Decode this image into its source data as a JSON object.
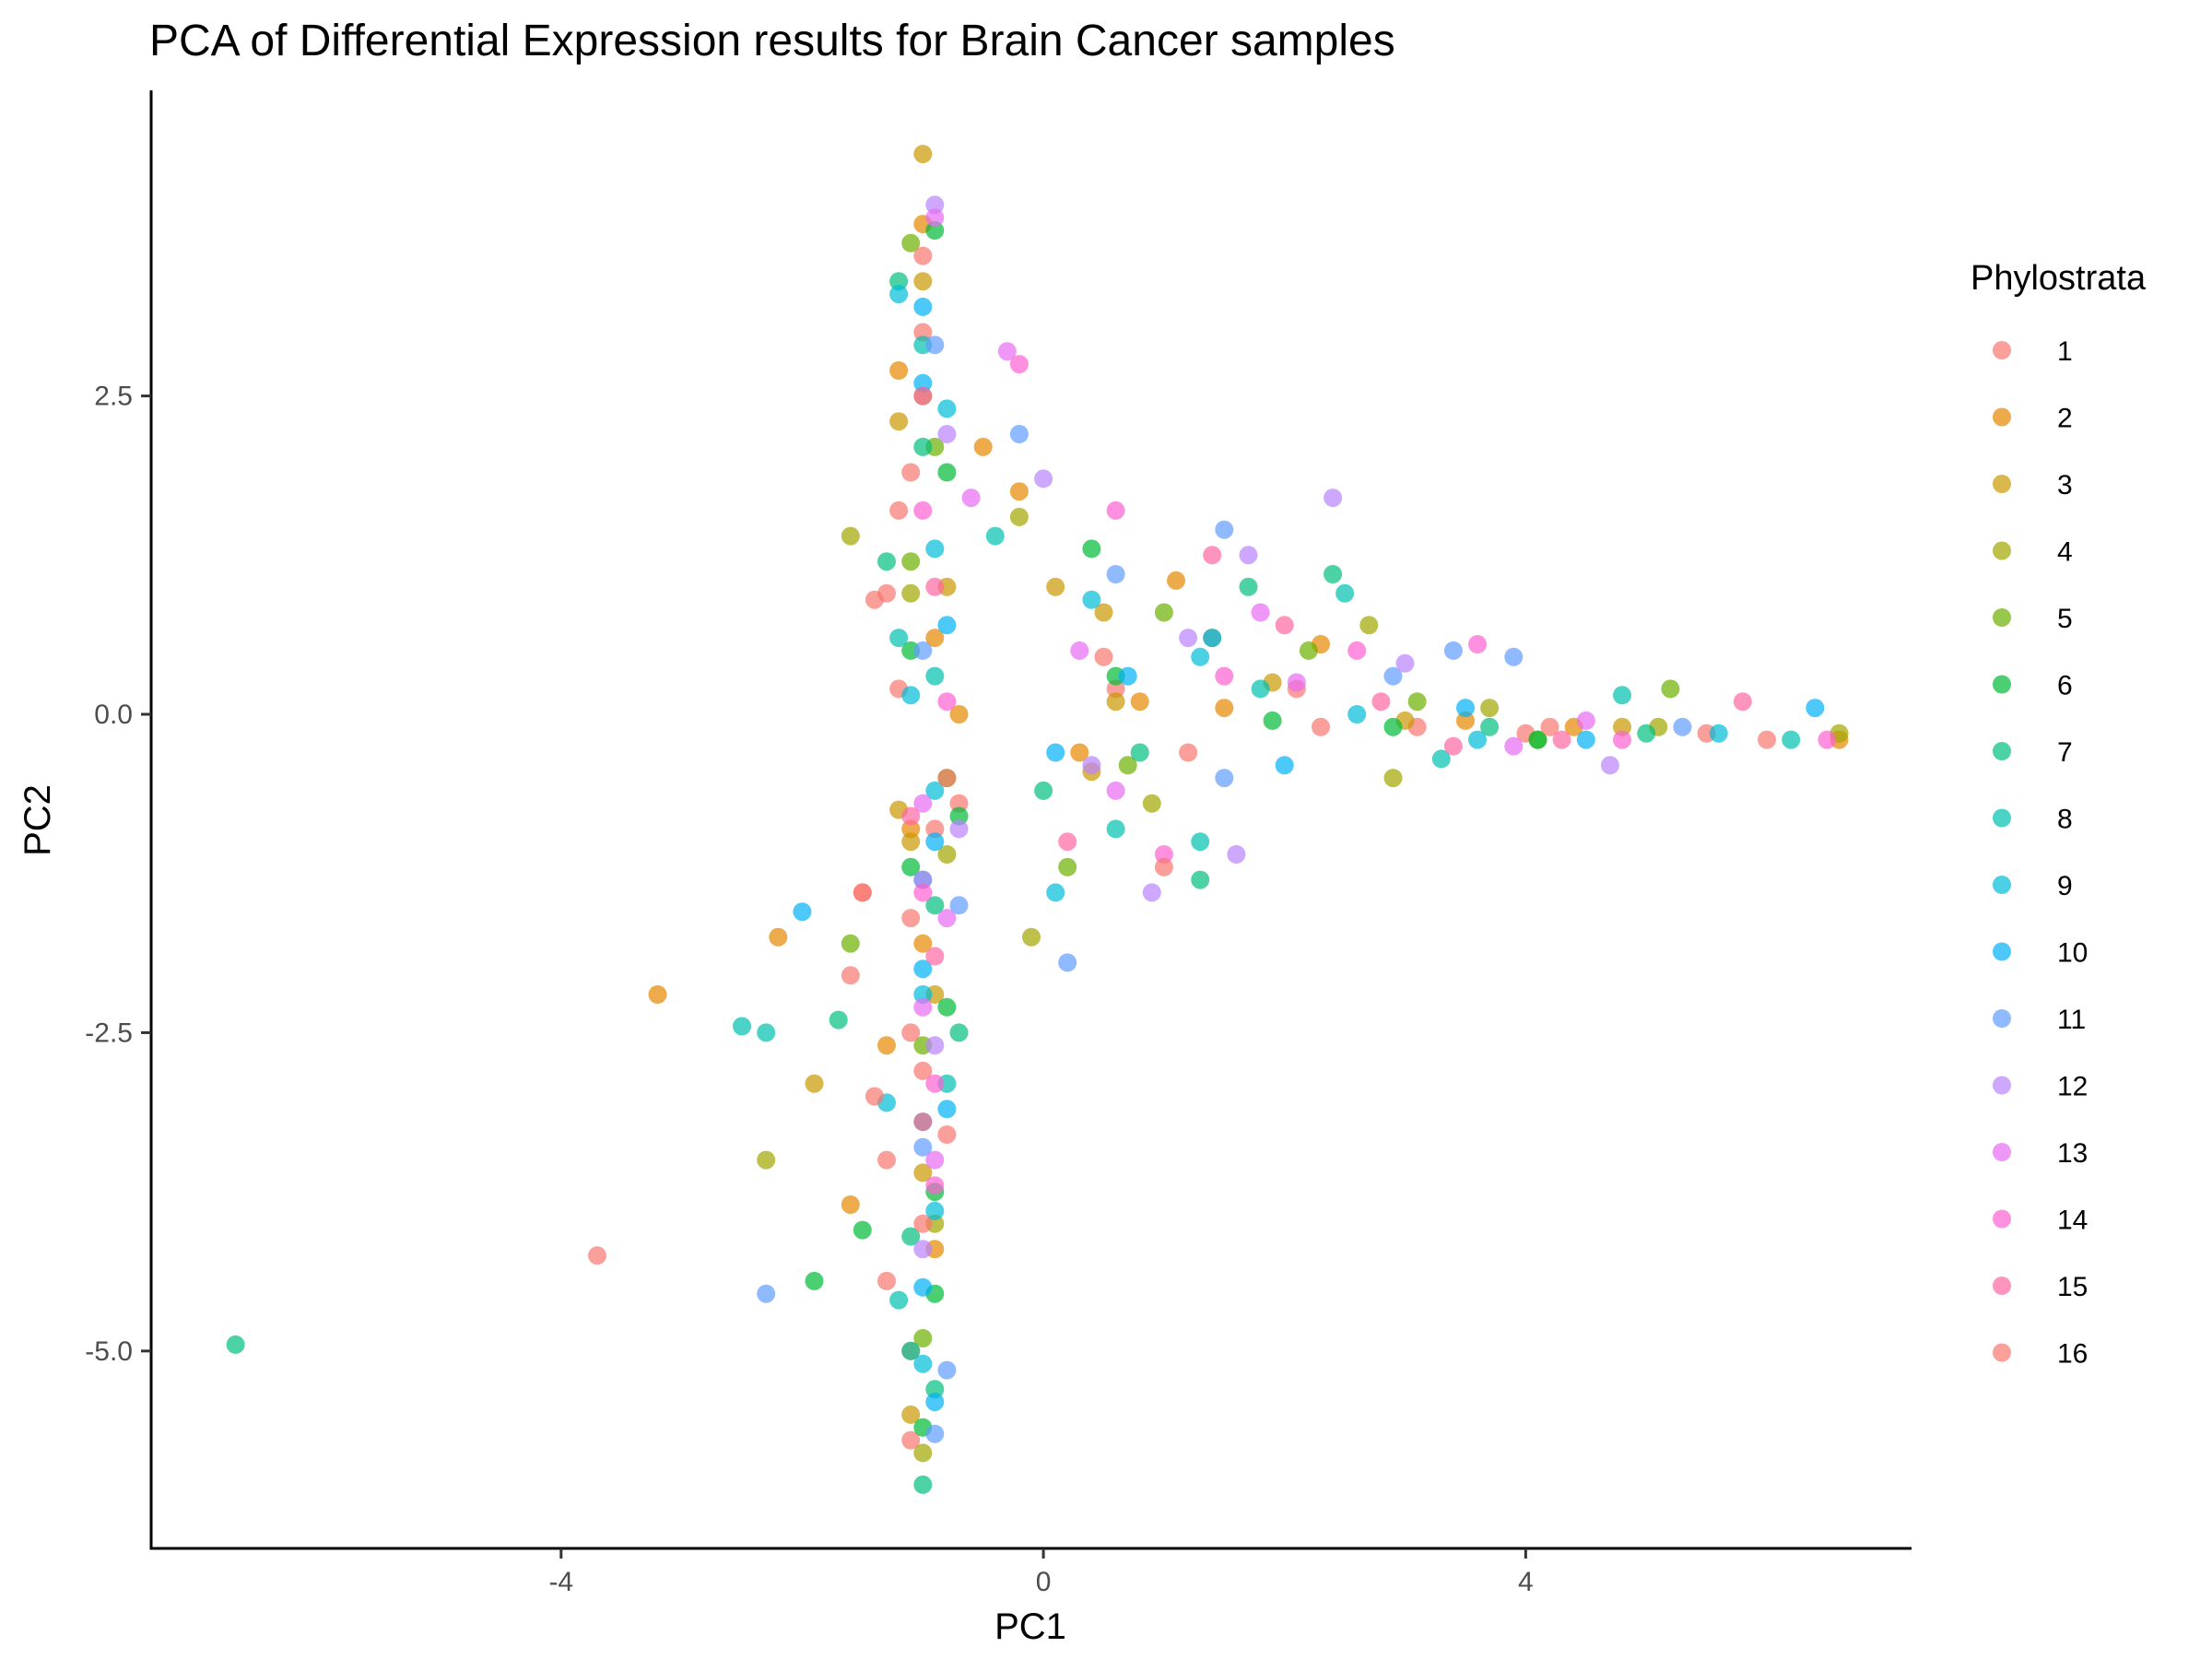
{
  "chart_data": {
    "type": "scatter",
    "title": "PCA of Differential Expression results for Brain Cancer samples",
    "xlabel": "PC1",
    "ylabel": "PC2",
    "xlim": [
      -7.4,
      7.2
    ],
    "ylim": [
      -6.55,
      4.9
    ],
    "x_ticks": [
      -4,
      0,
      4
    ],
    "x_tick_labels": [
      "-4",
      "0",
      "4"
    ],
    "y_ticks": [
      -5.0,
      -2.5,
      0.0,
      2.5
    ],
    "y_tick_labels": [
      "-5.0",
      "-2.5",
      "0.0",
      "2.5"
    ],
    "grid": false,
    "legend": {
      "title": "Phylostrata",
      "placement": "right",
      "entries": [
        "1",
        "2",
        "3",
        "4",
        "5",
        "6",
        "7",
        "8",
        "9",
        "10",
        "11",
        "12",
        "13",
        "14",
        "15",
        "16"
      ]
    },
    "colors": [
      "#F8766D",
      "#E58700",
      "#C99800",
      "#A3A500",
      "#6BB100",
      "#00BA38",
      "#00BF7D",
      "#00C0AF",
      "#00BCD8",
      "#00B0F6",
      "#619CFF",
      "#B983FF",
      "#E76BF3",
      "#FD61D1",
      "#FF67A4",
      "#F8766D"
    ],
    "point_opacity": 0.7,
    "series": [
      {
        "name": "1",
        "points": [
          [
            -3.7,
            -4.25
          ],
          [
            -1.2,
            0.2
          ],
          [
            -1.4,
            0.9
          ],
          [
            -1.6,
            -2.05
          ],
          [
            -1.3,
            -3.5
          ],
          [
            -1.3,
            -4.45
          ],
          [
            -1.1,
            -5.7
          ],
          [
            -1.5,
            -1.4
          ],
          [
            -1.0,
            -2.8
          ],
          [
            -0.9,
            -0.9
          ],
          [
            -1.2,
            1.6
          ],
          [
            -1.0,
            3.0
          ],
          [
            -0.7,
            -0.7
          ],
          [
            0.6,
            0.2
          ],
          [
            1.2,
            -0.3
          ],
          [
            2.1,
            0.2
          ],
          [
            3.1,
            -0.1
          ],
          [
            4.0,
            -0.15
          ],
          [
            5.5,
            -0.15
          ],
          [
            6.0,
            -0.2
          ],
          [
            -0.8,
            -3.3
          ],
          [
            -1.1,
            -1.6
          ]
        ]
      },
      {
        "name": "2",
        "points": [
          [
            -3.2,
            -2.2
          ],
          [
            -2.2,
            -1.75
          ],
          [
            -1.6,
            -3.85
          ],
          [
            -0.5,
            2.1
          ],
          [
            -0.2,
            1.75
          ],
          [
            -0.7,
            0.0
          ],
          [
            1.5,
            0.05
          ],
          [
            1.1,
            1.05
          ],
          [
            -1.2,
            2.7
          ],
          [
            -1.0,
            3.85
          ],
          [
            -1.1,
            -0.9
          ],
          [
            -1.1,
            -5.0
          ],
          [
            -1.0,
            -1.8
          ],
          [
            -0.9,
            0.6
          ],
          [
            0.3,
            -0.3
          ],
          [
            0.8,
            0.1
          ],
          [
            2.3,
            0.55
          ],
          [
            3.5,
            -0.05
          ],
          [
            4.4,
            -0.1
          ],
          [
            6.6,
            -0.2
          ],
          [
            -1.3,
            -2.6
          ],
          [
            -0.9,
            -4.2
          ]
        ]
      },
      {
        "name": "3",
        "points": [
          [
            -1.0,
            4.4
          ],
          [
            -1.9,
            -2.9
          ],
          [
            -1.1,
            -5.5
          ],
          [
            -1.0,
            3.4
          ],
          [
            -1.2,
            2.3
          ],
          [
            0.1,
            1.0
          ],
          [
            -0.8,
            1.0
          ],
          [
            0.5,
            0.8
          ],
          [
            0.6,
            0.1
          ],
          [
            1.9,
            0.25
          ],
          [
            3.0,
            -0.05
          ],
          [
            -1.1,
            -1.0
          ],
          [
            -1.0,
            -3.6
          ],
          [
            0.4,
            -0.45
          ],
          [
            4.8,
            -0.1
          ],
          [
            -0.9,
            -2.2
          ],
          [
            -1.2,
            -0.75
          ]
        ]
      },
      {
        "name": "4",
        "points": [
          [
            -2.3,
            -3.5
          ],
          [
            -1.6,
            1.4
          ],
          [
            -0.2,
            1.55
          ],
          [
            -0.1,
            -1.75
          ],
          [
            2.9,
            -0.5
          ],
          [
            2.7,
            0.7
          ],
          [
            -1.0,
            2.5
          ],
          [
            -0.8,
            -1.1
          ],
          [
            -0.9,
            -4.0
          ],
          [
            0.9,
            -0.7
          ],
          [
            1.4,
            0.6
          ],
          [
            5.1,
            -0.1
          ],
          [
            6.6,
            -0.15
          ],
          [
            -1.0,
            -5.8
          ],
          [
            -1.1,
            0.95
          ],
          [
            3.7,
            0.05
          ]
        ]
      },
      {
        "name": "5",
        "points": [
          [
            -1.6,
            -1.8
          ],
          [
            -1.1,
            1.2
          ],
          [
            -0.9,
            2.1
          ],
          [
            -1.0,
            -2.6
          ],
          [
            -1.0,
            -4.9
          ],
          [
            0.2,
            -1.2
          ],
          [
            1.0,
            0.8
          ],
          [
            2.2,
            0.5
          ],
          [
            3.1,
            0.1
          ],
          [
            5.2,
            0.2
          ],
          [
            4.1,
            -0.2
          ],
          [
            -0.8,
            -0.5
          ],
          [
            -1.1,
            3.7
          ],
          [
            0.7,
            -0.4
          ]
        ]
      },
      {
        "name": "6",
        "points": [
          [
            -1.9,
            -4.45
          ],
          [
            -1.5,
            -4.05
          ],
          [
            -0.9,
            -4.55
          ],
          [
            -0.9,
            -3.75
          ],
          [
            -0.8,
            1.9
          ],
          [
            0.4,
            1.3
          ],
          [
            -0.7,
            -0.8
          ],
          [
            -1.1,
            -1.2
          ],
          [
            -0.9,
            3.8
          ],
          [
            1.9,
            -0.05
          ],
          [
            4.1,
            -0.2
          ],
          [
            -1.0,
            -5.6
          ],
          [
            0.6,
            0.3
          ],
          [
            2.9,
            -0.1
          ],
          [
            -0.8,
            -2.3
          ],
          [
            -1.1,
            0.5
          ]
        ]
      },
      {
        "name": "7",
        "points": [
          [
            -6.7,
            -4.95
          ],
          [
            -1.7,
            -2.4
          ],
          [
            -1.0,
            -3.2
          ],
          [
            -1.0,
            -6.05
          ],
          [
            -0.7,
            -2.5
          ],
          [
            1.3,
            -1.3
          ],
          [
            1.7,
            1.0
          ],
          [
            2.4,
            1.1
          ],
          [
            -1.3,
            1.2
          ],
          [
            -1.0,
            2.1
          ],
          [
            0.0,
            -0.6
          ],
          [
            -0.9,
            -1.5
          ],
          [
            -1.2,
            3.4
          ],
          [
            0.8,
            -0.3
          ],
          [
            3.7,
            -0.1
          ],
          [
            5.0,
            -0.15
          ],
          [
            -0.9,
            -5.3
          ],
          [
            -1.1,
            -4.1
          ]
        ]
      },
      {
        "name": "8",
        "points": [
          [
            -2.5,
            -2.45
          ],
          [
            -2.3,
            -2.5
          ],
          [
            -1.2,
            -4.6
          ],
          [
            -1.2,
            0.6
          ],
          [
            -0.4,
            1.4
          ],
          [
            1.3,
            -1.0
          ],
          [
            0.6,
            -0.9
          ],
          [
            -1.0,
            2.9
          ],
          [
            -1.0,
            -1.3
          ],
          [
            -0.8,
            -2.9
          ],
          [
            2.5,
            0.95
          ],
          [
            3.3,
            -0.35
          ],
          [
            4.8,
            0.15
          ],
          [
            6.2,
            -0.2
          ],
          [
            -1.1,
            -5.0
          ],
          [
            -0.9,
            0.3
          ],
          [
            1.8,
            0.2
          ]
        ]
      },
      {
        "name": "9",
        "points": [
          [
            -1.1,
            0.15
          ],
          [
            -1.3,
            -3.05
          ],
          [
            -1.2,
            3.3
          ],
          [
            -0.9,
            1.3
          ],
          [
            0.4,
            0.9
          ],
          [
            0.1,
            -1.4
          ],
          [
            -0.9,
            -0.6
          ],
          [
            -1.0,
            -2.2
          ],
          [
            -0.9,
            -3.9
          ],
          [
            2.6,
            0.0
          ],
          [
            3.6,
            -0.2
          ],
          [
            5.6,
            -0.15
          ],
          [
            -1.0,
            -5.1
          ],
          [
            1.3,
            0.45
          ],
          [
            -0.8,
            2.4
          ]
        ]
      },
      {
        "name": "10",
        "points": [
          [
            -2.0,
            -1.55
          ],
          [
            -0.9,
            -5.4
          ],
          [
            -1.0,
            -4.5
          ],
          [
            0.1,
            -0.3
          ],
          [
            0.7,
            0.3
          ],
          [
            1.4,
            0.6
          ],
          [
            3.5,
            0.05
          ],
          [
            6.4,
            0.05
          ],
          [
            -0.8,
            -3.1
          ],
          [
            -0.9,
            -1.0
          ],
          [
            -1.0,
            2.6
          ],
          [
            -0.8,
            0.7
          ],
          [
            2.0,
            -0.4
          ],
          [
            4.5,
            -0.2
          ],
          [
            -1.0,
            -2.0
          ],
          [
            -1.0,
            3.2
          ]
        ]
      },
      {
        "name": "11",
        "points": [
          [
            -2.3,
            -4.55
          ],
          [
            -0.9,
            -5.65
          ],
          [
            -0.8,
            -5.15
          ],
          [
            -0.2,
            2.2
          ],
          [
            1.5,
            1.45
          ],
          [
            0.2,
            -1.95
          ],
          [
            -0.7,
            -1.5
          ],
          [
            3.9,
            0.45
          ],
          [
            3.4,
            0.5
          ],
          [
            -1.0,
            -3.4
          ],
          [
            -0.9,
            2.9
          ],
          [
            0.6,
            1.1
          ],
          [
            2.9,
            0.3
          ],
          [
            5.3,
            -0.1
          ],
          [
            -1.0,
            0.5
          ],
          [
            1.5,
            -0.5
          ]
        ]
      },
      {
        "name": "12",
        "points": [
          [
            -0.9,
            4.0
          ],
          [
            0.0,
            1.85
          ],
          [
            2.4,
            1.7
          ],
          [
            1.7,
            1.25
          ],
          [
            4.7,
            -0.4
          ],
          [
            1.6,
            -1.1
          ],
          [
            0.4,
            -0.4
          ],
          [
            -0.8,
            2.2
          ],
          [
            -0.7,
            -0.9
          ],
          [
            -0.9,
            -2.6
          ],
          [
            -1.0,
            -4.2
          ],
          [
            1.2,
            0.6
          ],
          [
            3.0,
            0.4
          ],
          [
            0.9,
            -1.4
          ],
          [
            -1.0,
            -1.3
          ]
        ]
      },
      {
        "name": "13",
        "points": [
          [
            -0.3,
            2.85
          ],
          [
            1.8,
            0.8
          ],
          [
            -0.6,
            1.7
          ],
          [
            -0.9,
            3.9
          ],
          [
            -0.8,
            -1.6
          ],
          [
            -0.9,
            -3.5
          ],
          [
            0.3,
            0.5
          ],
          [
            2.1,
            0.25
          ],
          [
            3.9,
            -0.25
          ],
          [
            -1.0,
            -0.7
          ],
          [
            0.6,
            -0.6
          ],
          [
            4.5,
            -0.05
          ],
          [
            -1.0,
            -2.3
          ]
        ]
      },
      {
        "name": "14",
        "points": [
          [
            -0.2,
            2.75
          ],
          [
            0.6,
            1.6
          ],
          [
            3.6,
            0.55
          ],
          [
            2.6,
            0.5
          ],
          [
            1.0,
            -1.1
          ],
          [
            -0.9,
            -2.9
          ],
          [
            -0.9,
            -3.7
          ],
          [
            -1.0,
            1.6
          ],
          [
            -0.8,
            0.1
          ],
          [
            1.5,
            0.3
          ],
          [
            6.5,
            -0.2
          ],
          [
            -1.0,
            -1.4
          ],
          [
            4.8,
            -0.2
          ]
        ]
      },
      {
        "name": "15",
        "points": [
          [
            1.4,
            1.25
          ],
          [
            5.8,
            0.1
          ],
          [
            2.0,
            0.7
          ],
          [
            4.3,
            -0.2
          ],
          [
            -1.0,
            2.5
          ],
          [
            -0.9,
            -1.9
          ],
          [
            -1.0,
            -3.2
          ],
          [
            0.2,
            -1.0
          ],
          [
            -0.9,
            1.0
          ],
          [
            2.8,
            0.1
          ],
          [
            3.4,
            -0.25
          ],
          [
            -1.1,
            -0.8
          ]
        ]
      },
      {
        "name": "16",
        "points": [
          [
            -1.5,
            -1.4
          ],
          [
            -1.4,
            -3.0
          ],
          [
            -1.3,
            0.95
          ],
          [
            1.0,
            -1.2
          ],
          [
            -1.1,
            -2.5
          ],
          [
            -1.0,
            3.6
          ],
          [
            0.5,
            0.45
          ],
          [
            2.3,
            -0.1
          ],
          [
            4.2,
            -0.1
          ],
          [
            -0.8,
            -0.5
          ],
          [
            -1.0,
            -4.0
          ],
          [
            -1.1,
            1.9
          ]
        ]
      }
    ]
  }
}
